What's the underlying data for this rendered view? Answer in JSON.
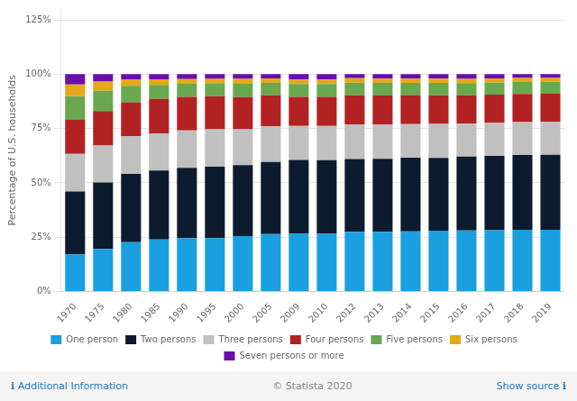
{
  "chart_data": {
    "type": "bar",
    "ylabel": "Percentage of U.S. households",
    "categories": [
      "1970",
      "1975",
      "1980",
      "1985",
      "1990",
      "1995",
      "2000",
      "2005",
      "2009",
      "2010",
      "2012",
      "2013",
      "2014",
      "2015",
      "2016",
      "2017",
      "2018",
      "2019"
    ],
    "series": [
      {
        "name": "One person",
        "color": "#1a9fe0",
        "values": [
          17.1,
          19.6,
          22.7,
          24.0,
          24.6,
          24.6,
          25.5,
          26.4,
          26.7,
          26.7,
          27.5,
          27.5,
          27.7,
          28.0,
          28.1,
          28.2,
          28.4,
          28.4
        ]
      },
      {
        "name": "Two persons",
        "color": "#0d1b2e",
        "values": [
          28.9,
          30.6,
          31.4,
          31.7,
          32.3,
          32.8,
          32.7,
          33.2,
          33.8,
          33.7,
          33.5,
          33.6,
          33.9,
          33.5,
          34.0,
          34.2,
          34.4,
          34.5
        ]
      },
      {
        "name": "Three persons",
        "color": "#c0c0c0",
        "values": [
          17.3,
          17.0,
          17.3,
          17.1,
          17.2,
          17.2,
          16.4,
          16.4,
          15.7,
          15.8,
          15.9,
          15.7,
          15.4,
          15.6,
          15.2,
          15.2,
          15.2,
          15.2
        ]
      },
      {
        "name": "Four persons",
        "color": "#b22222",
        "values": [
          15.9,
          15.8,
          15.7,
          15.8,
          15.5,
          15.3,
          14.9,
          14.3,
          13.4,
          13.4,
          13.4,
          13.4,
          13.4,
          13.2,
          13.0,
          13.0,
          12.9,
          12.9
        ]
      },
      {
        "name": "Five persons",
        "color": "#6aa84f",
        "values": [
          10.7,
          9.4,
          7.5,
          6.5,
          6.0,
          5.7,
          6.1,
          5.7,
          5.9,
          5.9,
          5.8,
          5.8,
          5.6,
          5.7,
          5.6,
          5.6,
          5.5,
          5.5
        ]
      },
      {
        "name": "Six persons",
        "color": "#e6a817",
        "values": [
          5.4,
          4.2,
          3.1,
          2.6,
          2.2,
          2.3,
          2.3,
          2.1,
          2.1,
          2.1,
          2.1,
          2.0,
          2.0,
          2.0,
          2.0,
          1.9,
          1.9,
          1.8
        ]
      },
      {
        "name": "Seven persons or more",
        "color": "#6a0dad",
        "values": [
          4.7,
          3.4,
          2.3,
          2.3,
          2.2,
          2.1,
          2.1,
          1.9,
          2.4,
          2.4,
          1.8,
          2.0,
          2.0,
          2.0,
          2.1,
          1.9,
          1.7,
          1.7
        ]
      }
    ],
    "stacked": true,
    "ylim": [
      0,
      130
    ],
    "yticks": [
      {
        "value": 0,
        "label": "0%"
      },
      {
        "value": 25,
        "label": "25%"
      },
      {
        "value": 50,
        "label": "50%"
      },
      {
        "value": 75,
        "label": "75%"
      },
      {
        "value": 100,
        "label": "100%"
      },
      {
        "value": 125,
        "label": "125%"
      }
    ],
    "grid": true,
    "legend": "bottom",
    "annotations": [
      "ℹ Additional Information",
      "© Statista 2020",
      "Show source ℹ"
    ]
  }
}
